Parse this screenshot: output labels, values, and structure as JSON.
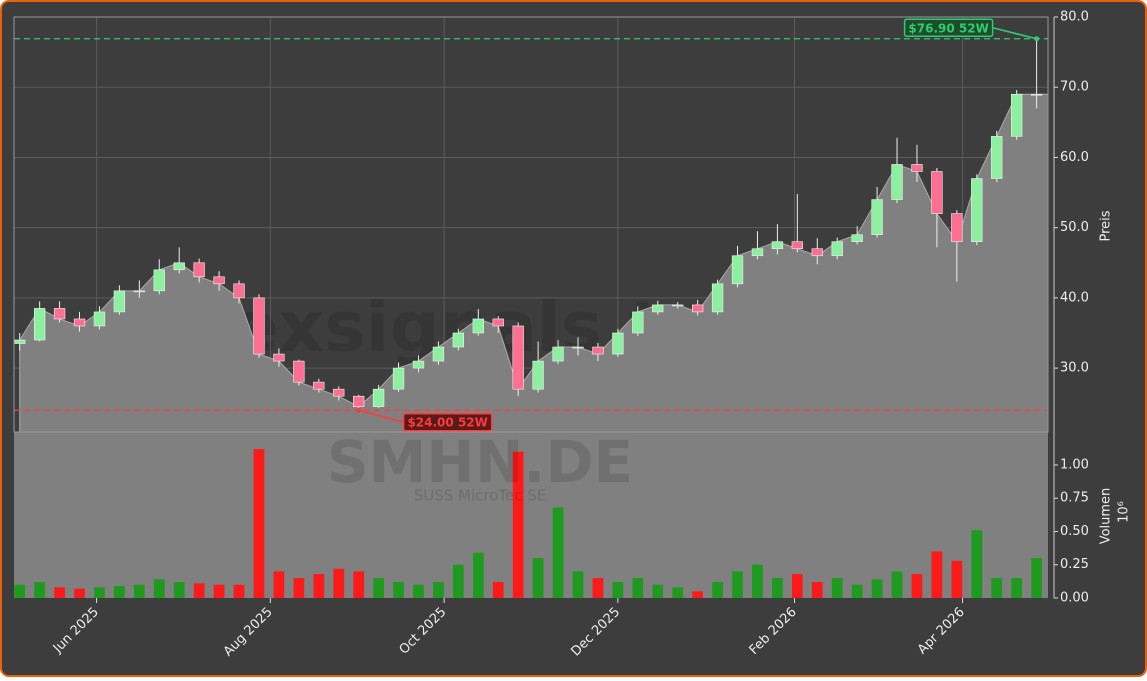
{
  "chart_data": {
    "type": "candlestick",
    "watermark": "forexsignals.trade",
    "symbol": "SMHN.DE",
    "company": "SUSS MicroTec SE",
    "ylabel": "Preis",
    "y2label": "Volumen",
    "y2offset": "10⁶",
    "x": [
      "2025-05-05",
      "2025-05-12",
      "2025-05-19",
      "2025-05-26",
      "2025-06-02",
      "2025-06-09",
      "2025-06-16",
      "2025-06-23",
      "2025-06-30",
      "2025-07-07",
      "2025-07-14",
      "2025-07-21",
      "2025-07-28",
      "2025-08-04",
      "2025-08-11",
      "2025-08-18",
      "2025-08-25",
      "2025-09-01",
      "2025-09-08",
      "2025-09-15",
      "2025-09-22",
      "2025-09-29",
      "2025-10-06",
      "2025-10-13",
      "2025-10-20",
      "2025-10-27",
      "2025-11-03",
      "2025-11-10",
      "2025-11-17",
      "2025-11-24",
      "2025-12-01",
      "2025-12-08",
      "2025-12-15",
      "2025-12-22",
      "2025-12-29",
      "2026-01-05",
      "2026-01-12",
      "2026-01-19",
      "2026-01-26",
      "2026-02-02",
      "2026-02-09",
      "2026-02-16",
      "2026-02-23",
      "2026-03-02",
      "2026-03-09",
      "2026-03-16",
      "2026-03-23",
      "2026-03-30",
      "2026-04-06",
      "2026-04-13",
      "2026-04-20",
      "2026-04-27"
    ],
    "open": [
      33.5,
      34,
      38.5,
      37,
      36,
      38,
      41,
      41,
      44,
      45,
      43,
      42,
      40,
      32,
      31,
      28,
      27,
      26,
      24.5,
      27,
      30,
      31,
      33,
      35,
      37,
      36,
      27,
      31,
      33,
      33,
      32,
      35,
      38,
      39,
      39,
      38,
      42,
      46,
      47,
      48,
      47,
      46,
      48,
      49,
      54,
      59,
      58,
      52,
      48,
      57,
      63,
      69
    ],
    "high": [
      35,
      39.5,
      39.5,
      38,
      38.8,
      41.8,
      42.5,
      45.5,
      47.2,
      45.6,
      43.8,
      42.5,
      40.5,
      32.8,
      31.2,
      28.5,
      27.4,
      26.2,
      27.6,
      30.8,
      31.8,
      33.8,
      35.6,
      38.4,
      37.4,
      36.5,
      33.8,
      34,
      34.4,
      33.6,
      35.6,
      38.8,
      39.6,
      39.4,
      39.7,
      42.6,
      47.4,
      49.5,
      50.5,
      54.8,
      48.5,
      48.6,
      50.2,
      55.8,
      62.8,
      61.8,
      58.5,
      52.5,
      57.6,
      63.8,
      69.6,
      76.9
    ],
    "low": [
      32.5,
      33.8,
      36.5,
      35.2,
      35.5,
      37.6,
      40,
      40.5,
      43.5,
      42.2,
      41,
      39.2,
      31.5,
      30.2,
      27.5,
      26.5,
      25.4,
      24,
      24.3,
      26.6,
      29.4,
      30.5,
      32.5,
      34.6,
      35,
      26,
      26.5,
      30.6,
      31.8,
      31,
      31.6,
      34.6,
      37.6,
      38.5,
      37.5,
      37.6,
      41.5,
      45.5,
      46.2,
      46.5,
      44.8,
      45.5,
      47.6,
      48.6,
      53.5,
      56.5,
      47.2,
      42.3,
      47.5,
      56.5,
      62.5,
      67
    ],
    "close": [
      34,
      38.5,
      37,
      36,
      38,
      41,
      41,
      44,
      45,
      43,
      42,
      40,
      32,
      31,
      28,
      27,
      26,
      24.5,
      27,
      30,
      31,
      33,
      35,
      37,
      36,
      27,
      31,
      33,
      33,
      32,
      35,
      38,
      39,
      39,
      38,
      42,
      46,
      47,
      48,
      47,
      46,
      48,
      49,
      54,
      59,
      58,
      52,
      48,
      57,
      63,
      69,
      69
    ],
    "volume": [
      0.1,
      0.12,
      0.08,
      0.07,
      0.08,
      0.09,
      0.1,
      0.14,
      0.12,
      0.11,
      0.1,
      0.1,
      1.12,
      0.2,
      0.15,
      0.18,
      0.22,
      0.2,
      0.15,
      0.12,
      0.1,
      0.12,
      0.25,
      0.34,
      0.12,
      1.1,
      0.3,
      0.68,
      0.2,
      0.15,
      0.12,
      0.15,
      0.1,
      0.08,
      0.05,
      0.12,
      0.2,
      0.25,
      0.15,
      0.18,
      0.12,
      0.15,
      0.1,
      0.14,
      0.2,
      0.18,
      0.35,
      0.28,
      0.51,
      0.15,
      0.15,
      0.3
    ],
    "up_color": "#8df0a0",
    "down_color": "#ff6f91",
    "volume_up_color": "#1e9a1e",
    "volume_down_color": "#ff1a1a",
    "area_color": "#808080",
    "xlim": [
      "2025-05-03",
      "2026-05-01"
    ],
    "xticks": [
      {
        "value": "2025-06-01",
        "label": "Jun 2025"
      },
      {
        "value": "2025-08-01",
        "label": "Aug 2025"
      },
      {
        "value": "2025-10-01",
        "label": "Oct 2025"
      },
      {
        "value": "2025-12-01",
        "label": "Dec 2025"
      },
      {
        "value": "2026-02-01",
        "label": "Feb 2026"
      },
      {
        "value": "2026-04-01",
        "label": "Apr 2026"
      }
    ],
    "ylim": [
      20.9,
      80
    ],
    "yticks": [
      {
        "value": 30,
        "label": "30.0"
      },
      {
        "value": 40,
        "label": "40.0"
      },
      {
        "value": 50,
        "label": "50.0"
      },
      {
        "value": 60,
        "label": "60.0"
      },
      {
        "value": 70,
        "label": "70.0"
      },
      {
        "value": 80,
        "label": "80.0"
      }
    ],
    "y2lim": [
      0,
      1.248
    ],
    "y2ticks": [
      {
        "value": 0,
        "label": "0.00"
      },
      {
        "value": 0.25,
        "label": "0.25"
      },
      {
        "value": 0.5,
        "label": "0.50"
      },
      {
        "value": 0.75,
        "label": "0.75"
      },
      {
        "value": 1,
        "label": "1.00"
      }
    ],
    "grid": true,
    "annotations": [
      {
        "text": "$76.90 52W",
        "x": "2026-04-27",
        "y": 76.9,
        "color": "#2ecc71",
        "bg": "#1d4d2a"
      },
      {
        "text": "$24.00 52W",
        "x": "2025-09-01",
        "y": 24.0,
        "color": "#ff3b3b",
        "bg": "#5a1a1a"
      }
    ]
  }
}
